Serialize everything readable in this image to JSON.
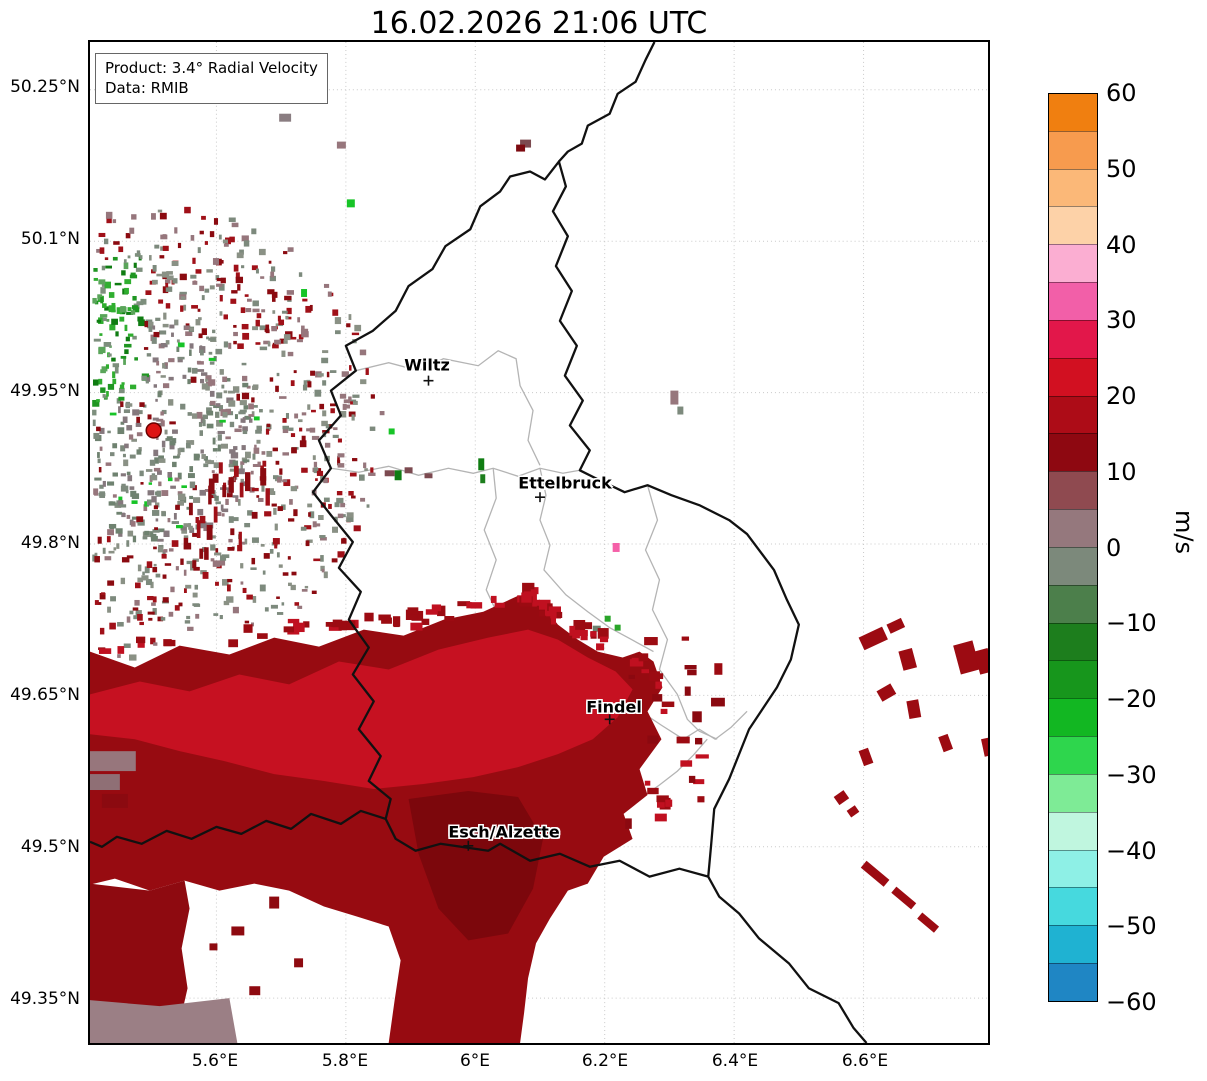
{
  "title": "16.02.2026 21:06 UTC",
  "info_box": {
    "line1": "Product: 3.4° Radial Velocity",
    "line2": "Data: RMIB"
  },
  "axes": {
    "y_ticks": [
      "50.25°N",
      "50.1°N",
      "49.95°N",
      "49.8°N",
      "49.65°N",
      "49.5°N",
      "49.35°N"
    ],
    "x_ticks": [
      "5.6°E",
      "5.8°E",
      "6°E",
      "6.2°E",
      "6.4°E",
      "6.6°E"
    ]
  },
  "map": {
    "cities": [
      {
        "name": "Wiltz"
      },
      {
        "name": "Ettelbruck"
      },
      {
        "name": "Findel"
      },
      {
        "name": "Esch/Alzette"
      }
    ],
    "radar_marker_color": "#dd1414"
  },
  "colorbar": {
    "unit": "m/s",
    "ticks": [
      "60",
      "50",
      "40",
      "30",
      "20",
      "10",
      "0",
      "−10",
      "−20",
      "−30",
      "−40",
      "−50",
      "−60"
    ],
    "segments": [
      "#f07f10",
      "#f79b4e",
      "#fbb878",
      "#fdd2a8",
      "#fbaed2",
      "#f25fa8",
      "#e2174a",
      "#d21021",
      "#ad0c17",
      "#8e0811",
      "#8f4a50",
      "#95787d",
      "#7c897b",
      "#4c7f4b",
      "#1d7e1d",
      "#17961c",
      "#12b722",
      "#2ed64d",
      "#7eeb96",
      "#c0f6df",
      "#8ef0e6",
      "#46d9de",
      "#1fb2d2",
      "#1f86c4"
    ]
  },
  "chart_data": {
    "type": "heatmap",
    "title": "16.02.2026 21:06 UTC",
    "product": "3.4° Radial Velocity",
    "source": "RMIB",
    "units": "m/s",
    "colorbar_ticks": [
      60,
      50,
      40,
      30,
      20,
      10,
      0,
      -10,
      -20,
      -30,
      -40,
      -50,
      -60
    ],
    "x_tick_values_deg_e": [
      5.6,
      5.8,
      6.0,
      6.2,
      6.4,
      6.6
    ],
    "y_tick_values_deg_n": [
      50.25,
      50.1,
      49.95,
      49.8,
      49.65,
      49.5,
      49.35
    ],
    "city_labels": [
      "Wiltz",
      "Ettelbruck",
      "Findel",
      "Esch/Alzette"
    ]
  }
}
